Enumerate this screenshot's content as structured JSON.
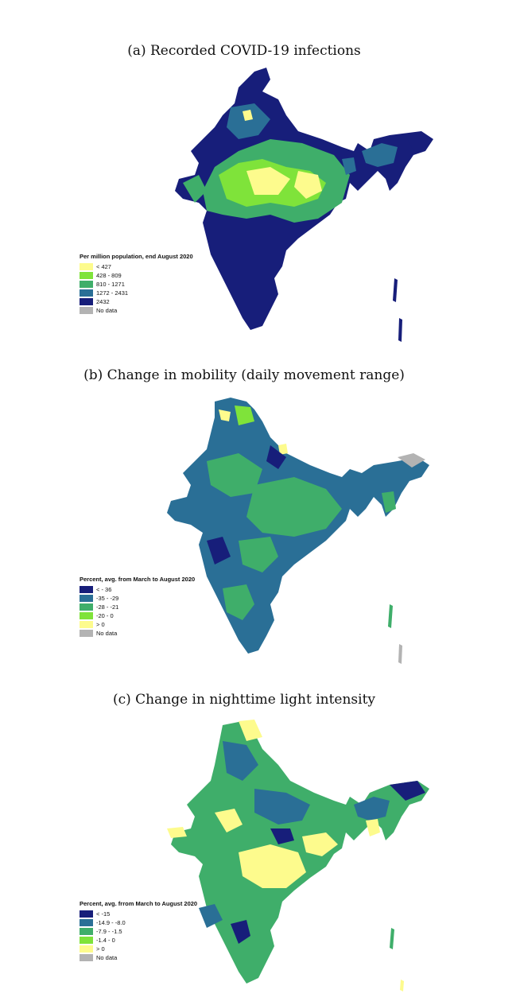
{
  "colors": {
    "c1": "#fdfb8d",
    "c2": "#7fe33a",
    "c3": "#3fae6a",
    "c4": "#2a6f96",
    "c5": "#171e7a",
    "nodata": "#b3b3b3"
  },
  "panels": [
    {
      "title": "(a) Recorded COVID-19 infections",
      "legend_title": "Per million population, end  August 2020",
      "legend": [
        {
          "label": "< 427",
          "color": "#fdfb8d"
        },
        {
          "label": "428 - 809",
          "color": "#7fe33a"
        },
        {
          "label": "810 - 1271",
          "color": "#3fae6a"
        },
        {
          "label": "1272 - 2431",
          "color": "#2a6f96"
        },
        {
          "label": "2432",
          "color": "#171e7a"
        },
        {
          "label": "No data",
          "color": "#b3b3b3"
        }
      ]
    },
    {
      "title": "(b) Change in mobility (daily movement range)",
      "legend_title": "Percent, avg. from March to  August  2020",
      "legend": [
        {
          "label": "< - 36",
          "color": "#171e7a"
        },
        {
          "label": "-35  -  -29",
          "color": "#2a6f96"
        },
        {
          "label": "-28  -  -21",
          "color": "#3fae6a"
        },
        {
          "label": "-20  -  0",
          "color": "#7fe33a"
        },
        {
          "label": "> 0",
          "color": "#fdfb8d"
        },
        {
          "label": "No data",
          "color": "#b3b3b3"
        }
      ]
    },
    {
      "title": "(c) Change in nighttime light intensity",
      "legend_title": "Percent, avg. frrom March to August 2020",
      "legend": [
        {
          "label": "< -15",
          "color": "#171e7a"
        },
        {
          "label": "-14.9  -  -8.0",
          "color": "#2a6f96"
        },
        {
          "label": "-7.9  -  -1.5",
          "color": "#3fae6a"
        },
        {
          "label": "-1.4  -  0",
          "color": "#7fe33a"
        },
        {
          "label": "> 0",
          "color": "#fdfb8d"
        },
        {
          "label": "No data",
          "color": "#b3b3b3"
        }
      ]
    }
  ]
}
